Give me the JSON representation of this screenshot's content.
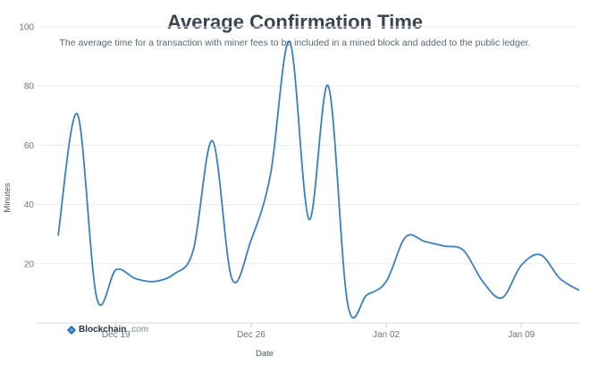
{
  "chart_data": {
    "type": "line",
    "title": "Average Confirmation Time",
    "subtitle": "The average time for a transaction with miner fees to be included in a mined block and added to the public ledger.",
    "xlabel": "Date",
    "ylabel": "Minutes",
    "ylim": [
      0,
      100
    ],
    "yticks": [
      20,
      40,
      60,
      80,
      100
    ],
    "xlim": [
      "2021-12-16",
      "2022-01-12"
    ],
    "xticks": [
      {
        "date": "2021-12-19",
        "label": "Dec 19"
      },
      {
        "date": "2021-12-26",
        "label": "Dec 26"
      },
      {
        "date": "2022-01-02",
        "label": "Jan 02"
      },
      {
        "date": "2022-01-09",
        "label": "Jan 09"
      }
    ],
    "grid": true,
    "line_color": "#3a7fc0",
    "series": [
      {
        "x": [
          "2021-12-16",
          "2021-12-17",
          "2021-12-18",
          "2021-12-19",
          "2021-12-20",
          "2021-12-21",
          "2021-12-22",
          "2021-12-23",
          "2021-12-24",
          "2021-12-25",
          "2021-12-26",
          "2021-12-27",
          "2021-12-28",
          "2021-12-29",
          "2021-12-30",
          "2021-12-31",
          "2022-01-01",
          "2022-01-02",
          "2022-01-03",
          "2022-01-04",
          "2022-01-05",
          "2022-01-06",
          "2022-01-07",
          "2022-01-08",
          "2022-01-09",
          "2022-01-10",
          "2022-01-11",
          "2022-01-12"
        ],
        "values": [
          29.5,
          70.5,
          8.5,
          18,
          15,
          14,
          16.5,
          24.5,
          61.5,
          15,
          28,
          50,
          95,
          35,
          80,
          6.5,
          9.5,
          14,
          29,
          27.5,
          26,
          24.5,
          14,
          8.5,
          19.5,
          23,
          15,
          11
        ]
      }
    ]
  },
  "branding": {
    "name": "Blockchain",
    "suffix": ".com"
  }
}
